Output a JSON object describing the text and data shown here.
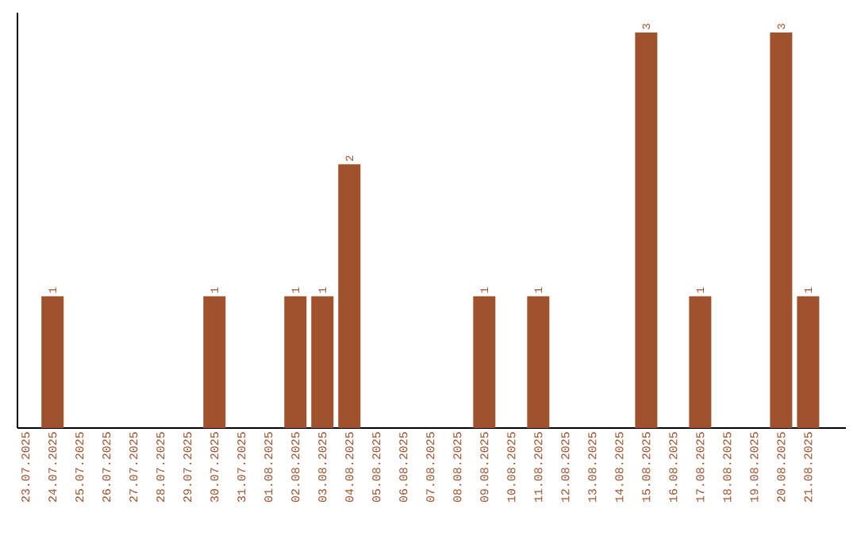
{
  "chart_data": {
    "type": "bar",
    "categories": [
      "23.07.2025",
      "24.07.2025",
      "25.07.2025",
      "26.07.2025",
      "27.07.2025",
      "28.07.2025",
      "29.07.2025",
      "30.07.2025",
      "31.07.2025",
      "01.08.2025",
      "02.08.2025",
      "03.08.2025",
      "04.08.2025",
      "05.08.2025",
      "06.08.2025",
      "07.08.2025",
      "08.08.2025",
      "09.08.2025",
      "10.08.2025",
      "11.08.2025",
      "12.08.2025",
      "13.08.2025",
      "14.08.2025",
      "15.08.2025",
      "16.08.2025",
      "17.08.2025",
      "18.08.2025",
      "19.08.2025",
      "20.08.2025",
      "21.08.2025"
    ],
    "values": [
      null,
      1,
      null,
      null,
      null,
      null,
      null,
      1,
      null,
      null,
      1,
      1,
      2,
      null,
      null,
      null,
      null,
      1,
      null,
      1,
      null,
      null,
      null,
      3,
      null,
      1,
      null,
      null,
      3,
      1
    ],
    "color": "#a0522d",
    "data_labels": true,
    "tick_labels": "x"
  }
}
